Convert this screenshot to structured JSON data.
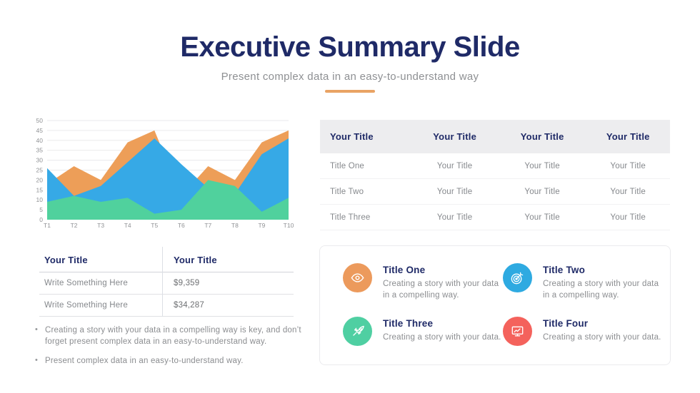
{
  "theme": {
    "accent": "#E9A364",
    "navy": "#1F2A67",
    "text_gray": "#8B8D90"
  },
  "header": {
    "title": "Executive Summary Slide",
    "subtitle": "Present complex data in an easy-to-understand way"
  },
  "chart_data": {
    "type": "area",
    "title": "",
    "categories": [
      "T1",
      "T2",
      "T3",
      "T4",
      "T5",
      "T6",
      "T7",
      "T8",
      "T9",
      "T10"
    ],
    "series": [
      {
        "name": "orange",
        "color": "#ED9E58",
        "values": [
          18,
          27,
          20,
          39,
          45,
          12,
          27,
          20,
          39,
          45
        ]
      },
      {
        "name": "blue",
        "color": "#36A9E6",
        "values": [
          26,
          12,
          17,
          29,
          41,
          28,
          16,
          13,
          33,
          41
        ]
      },
      {
        "name": "green",
        "color": "#50D19D",
        "values": [
          9,
          12,
          9,
          11,
          3,
          5,
          20,
          17,
          4,
          11
        ]
      }
    ],
    "paint_order": "first series painted at back, last at front",
    "xlabel": "",
    "ylabel": "",
    "ylim": [
      0,
      50
    ],
    "ytick_step": 5,
    "grid": true,
    "legend": "none"
  },
  "summary_table": {
    "headers": [
      "Your Title",
      "Your Title",
      "Your Title",
      "Your Title"
    ],
    "rows": [
      [
        "Title One",
        "Your Title",
        "Your Title",
        "Your Title"
      ],
      [
        "Title Two",
        "Your Title",
        "Your Title",
        "Your Title"
      ],
      [
        "Title Three",
        "Your Title",
        "Your Title",
        "Your Title"
      ]
    ]
  },
  "metrics_table": {
    "headers": [
      "Your Title",
      "Your Title"
    ],
    "rows": [
      [
        "Write Something Here",
        "$9,359"
      ],
      [
        "Write Something Here",
        "$34,287"
      ]
    ]
  },
  "bullets": [
    "Creating a story with your data in a compelling way is key, and don’t forget present complex data in an easy-to-understand way.",
    "Present complex data in an easy-to-understand way."
  ],
  "features": [
    {
      "title": "Title One",
      "description": "Creating a story with your data in a compelling way.",
      "icon": "eye-icon",
      "color": "#EC9A5C"
    },
    {
      "title": "Title Two",
      "description": "Creating a story with your data in a compelling way.",
      "icon": "target-icon",
      "color": "#2EAAE1"
    },
    {
      "title": "Title Three",
      "description": "Creating a story with your data.",
      "icon": "rocket-icon",
      "color": "#4FCFA2"
    },
    {
      "title": "Title Four",
      "description": "Creating a story with your data.",
      "icon": "monitor-chart-icon",
      "color": "#F4625C"
    }
  ]
}
